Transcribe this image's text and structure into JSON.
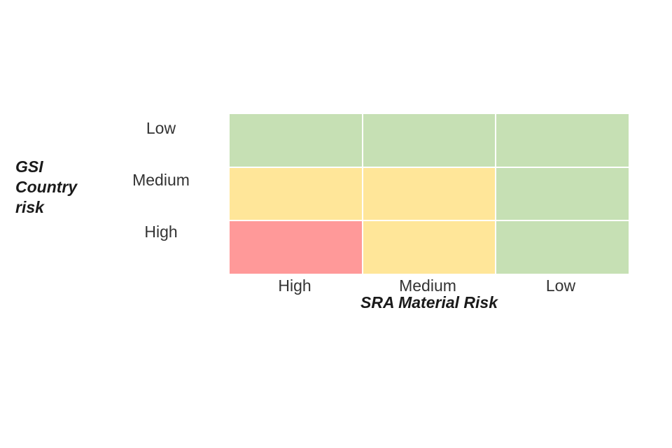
{
  "page": {
    "background_color": "#ffffff"
  },
  "chart_data": {
    "type": "heatmap",
    "title": "",
    "x_axis": {
      "label": "SRA Material Risk",
      "categories": [
        "High",
        "Medium",
        "Low"
      ]
    },
    "y_axis": {
      "label": "GSI Country risk",
      "categories": [
        "Low",
        "Medium",
        "High"
      ]
    },
    "cells": [
      [
        "green",
        "green",
        "green"
      ],
      [
        "yellow",
        "yellow",
        "green"
      ],
      [
        "red",
        "yellow",
        "green"
      ]
    ],
    "colors": {
      "green": "#c6e0b4",
      "yellow": "#ffe699",
      "red": "#ff9999"
    },
    "grid_gap_color": "#ffffff",
    "legend_position": "none"
  }
}
